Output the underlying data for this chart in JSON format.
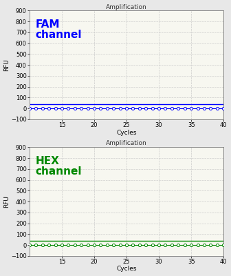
{
  "title": "Amplification",
  "xlabel": "Cycles",
  "ylabel": "RFU",
  "xlim": [
    10,
    40
  ],
  "ylim": [
    -100,
    900
  ],
  "yticks": [
    -100,
    0,
    100,
    200,
    300,
    400,
    500,
    600,
    700,
    800,
    900
  ],
  "xticks": [
    15,
    20,
    25,
    30,
    35,
    40
  ],
  "fam_label": "FAM\nchannel",
  "fam_color": "#0000FF",
  "hex_label": "HEX\nchannel",
  "hex_color": "#008800",
  "bg_color": "#f7f7f0",
  "cycles_start": 10,
  "cycles_end": 40,
  "n_points": 31,
  "threshold_fam": 40,
  "threshold_hex": 40,
  "grid_color": "#cccccc",
  "border_color": "#888888",
  "fig_bg": "#e8e8e8",
  "title_fontsize": 6.5,
  "label_fontsize": 6.5,
  "tick_fontsize": 6,
  "channel_fontsize": 11,
  "data_y": 0
}
